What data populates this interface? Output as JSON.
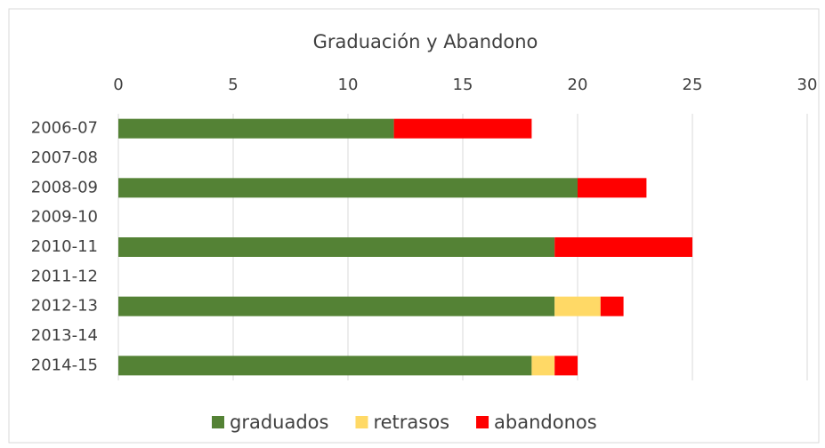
{
  "chart_data": {
    "type": "stacked_barh",
    "title": "Graduación y Abandono",
    "categories": [
      "2006-07",
      "2007-08",
      "2008-09",
      "2009-10",
      "2010-11",
      "2011-12",
      "2012-13",
      "2013-14",
      "2014-15"
    ],
    "series": [
      {
        "name": "graduados",
        "color": "#548235",
        "values": [
          12,
          null,
          20,
          null,
          19,
          null,
          19,
          null,
          18
        ]
      },
      {
        "name": "retrasos",
        "color": "#ffd966",
        "values": [
          0,
          null,
          0,
          null,
          0,
          null,
          2,
          null,
          1
        ]
      },
      {
        "name": "abandonos",
        "color": "#ff0000",
        "values": [
          6,
          null,
          3,
          null,
          6,
          null,
          1,
          null,
          1
        ]
      }
    ],
    "xlim": [
      0,
      30
    ],
    "xticks": [
      0,
      5,
      10,
      15,
      20,
      25,
      30
    ],
    "grid": true,
    "legend": "bottom"
  }
}
